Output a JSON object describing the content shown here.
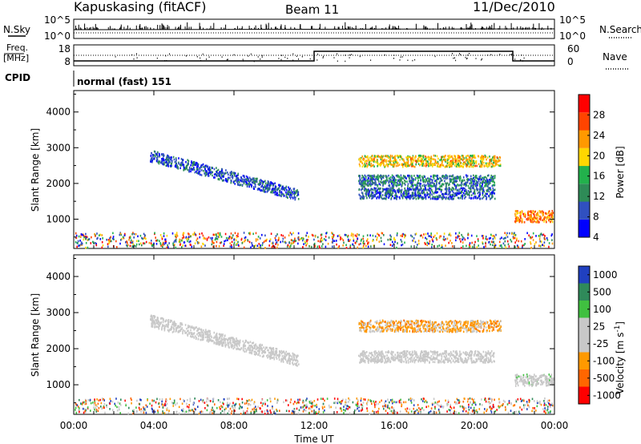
{
  "header": {
    "station": "Kapuskasing (fitACF)",
    "beam": "Beam 11",
    "date": "11/Dec/2010"
  },
  "summary": {
    "nsky_label": "N.Sky",
    "nsky_ticks": [
      "10^5",
      "10^0"
    ],
    "nsearch_label": "N.Search",
    "nsearch_ticks": [
      "10^5",
      "10^0"
    ],
    "freq_label_1": "Freq.",
    "freq_label_2": "[MHz]",
    "freq_ticks": [
      "18",
      "8"
    ],
    "nave_label": "Nave",
    "nave_ticks": [
      "60",
      "0"
    ],
    "cpid_label": "CPID",
    "cpid_value": "normal (fast) 151"
  },
  "x_axis": {
    "ticks": [
      "00:00",
      "04:00",
      "08:00",
      "12:00",
      "16:00",
      "20:00",
      "00:00"
    ],
    "label": "Time UT"
  },
  "power_panel": {
    "ylabel": "Slant Range [km]",
    "yticks": [
      "4000",
      "3000",
      "2000",
      "1000"
    ],
    "colorbar_label": "Power [dB]",
    "colorbar_ticks": [
      "28",
      "24",
      "20",
      "16",
      "12",
      "8",
      "4"
    ],
    "colors": [
      "#0000ff",
      "#3050c0",
      "#2e8b57",
      "#22b14c",
      "#ffd700",
      "#ff9900",
      "#ff4400",
      "#ff0000"
    ]
  },
  "velocity_panel": {
    "ylabel": "Slant Range [km]",
    "yticks": [
      "4000",
      "3000",
      "2000",
      "1000"
    ],
    "colorbar_label": "Velocity [m s",
    "colorbar_label_sup": "-1",
    "colorbar_label_end": "]",
    "colorbar_ticks": [
      "1000",
      "500",
      "100",
      "25",
      "-25",
      "-100",
      "-500",
      "-1000"
    ],
    "colors": [
      "#2040c0",
      "#2f8a5a",
      "#40c040",
      "#c8c8c8",
      "#c8c8c8",
      "#ff9900",
      "#ff6600",
      "#ff0000"
    ]
  },
  "chart_data": [
    {
      "type": "heatmap",
      "title": "Power",
      "xlabel": "Time UT",
      "ylabel": "Slant Range [km]",
      "xlim": [
        0,
        24
      ],
      "ylim": [
        180,
        4600
      ],
      "zlim": [
        0,
        30
      ],
      "features": [
        {
          "t_start": 3.8,
          "t_end": 11.2,
          "range_start": 2800,
          "range_end": 1700,
          "value": 6
        },
        {
          "t_start": 14.2,
          "t_end": 21.3,
          "range": 2650,
          "value": 18
        },
        {
          "t_start": 14.2,
          "t_end": 21.0,
          "range": 2100,
          "value": 8
        },
        {
          "t_start": 14.2,
          "t_end": 21.0,
          "range": 1750,
          "value": 6
        },
        {
          "t_start": 22.0,
          "t_end": 24.0,
          "range": 1100,
          "value": 22
        }
      ]
    },
    {
      "type": "heatmap",
      "title": "Velocity",
      "xlabel": "Time UT",
      "ylabel": "Slant Range [km]",
      "xlim": [
        0,
        24
      ],
      "ylim": [
        180,
        4600
      ],
      "zlim": [
        -1000,
        1000
      ],
      "features": [
        {
          "t_start": 3.8,
          "t_end": 11.2,
          "range_start": 2800,
          "range_end": 1700,
          "value": 0
        },
        {
          "t_start": 14.2,
          "t_end": 21.3,
          "range": 2650,
          "value": -300
        },
        {
          "t_start": 14.2,
          "t_end": 21.0,
          "range": 1800,
          "value": 0
        },
        {
          "t_start": 22.0,
          "t_end": 24.0,
          "range": 1150,
          "value": 60
        }
      ]
    }
  ]
}
